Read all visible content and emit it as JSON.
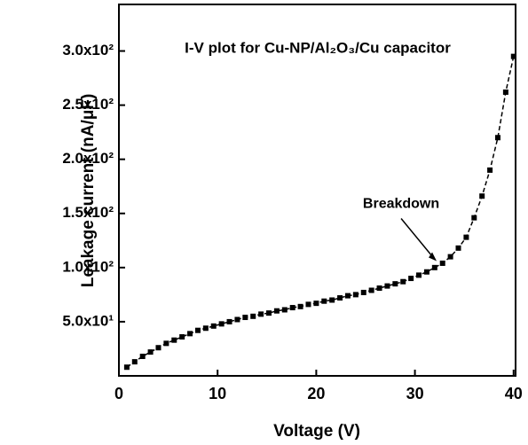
{
  "chart_data": {
    "type": "scatter",
    "title": "I-V plot for Cu-NP/Al₂O₃/Cu capacitor",
    "x_label": "Voltage (V)",
    "y_label": "Leakage current (nA/μF)",
    "x": [
      0.8,
      1.6,
      2.4,
      3.2,
      4.0,
      4.8,
      5.6,
      6.4,
      7.2,
      8.0,
      8.8,
      9.6,
      10.4,
      11.2,
      12.0,
      12.8,
      13.6,
      14.4,
      15.2,
      16.0,
      16.8,
      17.6,
      18.4,
      19.2,
      20.0,
      20.8,
      21.6,
      22.4,
      23.2,
      24.0,
      24.8,
      25.6,
      26.4,
      27.2,
      28.0,
      28.8,
      29.6,
      30.4,
      31.2,
      32.0,
      32.8,
      33.6,
      34.4,
      35.2,
      36.0,
      36.8,
      37.6,
      38.4,
      39.2,
      40.0
    ],
    "values": [
      8,
      13,
      18,
      22,
      26,
      30,
      33,
      36,
      39,
      42,
      44,
      46,
      48,
      50,
      52,
      54,
      55,
      57,
      58,
      60,
      61,
      63,
      64,
      66,
      67,
      69,
      70,
      72,
      74,
      75,
      77,
      79,
      81,
      83,
      85,
      87,
      90,
      93,
      96,
      100,
      104,
      110,
      118,
      128,
      146,
      166,
      190,
      220,
      262,
      295
    ],
    "color": "#000000",
    "xlim": [
      0,
      40.2
    ],
    "ylim": [
      0,
      343
    ],
    "xticks": [
      0,
      10,
      20,
      30,
      40
    ],
    "yticks": [
      {
        "value": 50,
        "label": "5.0x10¹"
      },
      {
        "value": 100,
        "label": "1.0x10²"
      },
      {
        "value": 150,
        "label": "1.5x10²"
      },
      {
        "value": 200,
        "label": "2.0x10²"
      },
      {
        "value": 250,
        "label": "2.5x10²"
      },
      {
        "value": 300,
        "label": "3.0x10²"
      }
    ],
    "annotations": [
      {
        "text": "Breakdown",
        "x": 32.2,
        "y": 106
      }
    ]
  }
}
